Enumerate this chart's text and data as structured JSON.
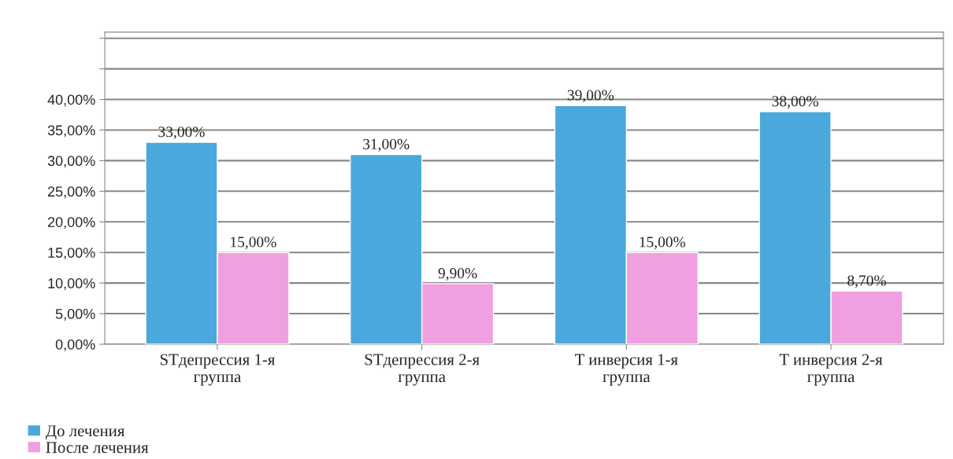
{
  "chart_data": {
    "type": "bar",
    "categories": [
      "STдепрессия 1-я группа",
      "STдепрессия 2-я группа",
      "T инверсия 1-я группа",
      "T инверсия 2-я группа"
    ],
    "series": [
      {
        "name": "До лечения",
        "color": "#4aa8dc",
        "values": [
          33,
          31,
          39,
          38
        ],
        "value_labels": [
          "33,00%",
          "31,00%",
          "39,00%",
          "38,00%"
        ]
      },
      {
        "name": "После лечения",
        "color": "#f0a0e0",
        "values": [
          15,
          9.9,
          15,
          8.7
        ],
        "value_labels": [
          "15,00%",
          "9,90%",
          "15,00%",
          "8,70%"
        ]
      }
    ],
    "ylim": [
      0,
      51
    ],
    "yticks": [
      {
        "value": 0,
        "label": "0,00%"
      },
      {
        "value": 5,
        "label": "5,00%"
      },
      {
        "value": 10,
        "label": "10,00%"
      },
      {
        "value": 15,
        "label": "15,00%"
      },
      {
        "value": 20,
        "label": "20,00%"
      },
      {
        "value": 25,
        "label": "25,00%"
      },
      {
        "value": 30,
        "label": "30,00%"
      },
      {
        "value": 35,
        "label": "35,00%"
      },
      {
        "value": 40,
        "label": "40,00%"
      },
      {
        "value": 45,
        "label": null
      },
      {
        "value": 50,
        "label": null
      }
    ],
    "grid": "y",
    "legend": "bottom left"
  }
}
